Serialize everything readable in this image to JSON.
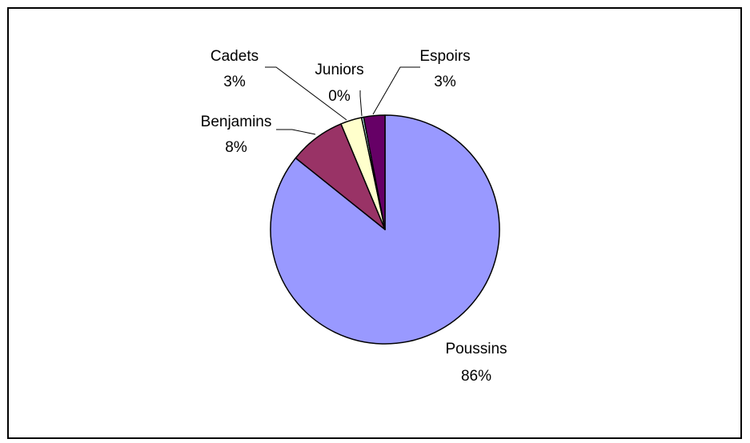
{
  "chart_data": {
    "type": "pie",
    "start_angle_deg": 0,
    "direction": "clockwise",
    "slices": [
      {
        "category": "Poussins",
        "value": 86,
        "pct_label": "86%",
        "color": "#9999ff"
      },
      {
        "category": "Benjamins",
        "value": 8,
        "pct_label": "8%",
        "color": "#993366"
      },
      {
        "category": "Cadets",
        "value": 3,
        "pct_label": "3%",
        "color": "#ffffcc"
      },
      {
        "category": "Juniors",
        "value": 0.3,
        "pct_label": "0%",
        "color": "#ccffff"
      },
      {
        "category": "Espoirs",
        "value": 3,
        "pct_label": "3%",
        "color": "#660066"
      }
    ],
    "legend": "none",
    "border_color": "#000000"
  }
}
